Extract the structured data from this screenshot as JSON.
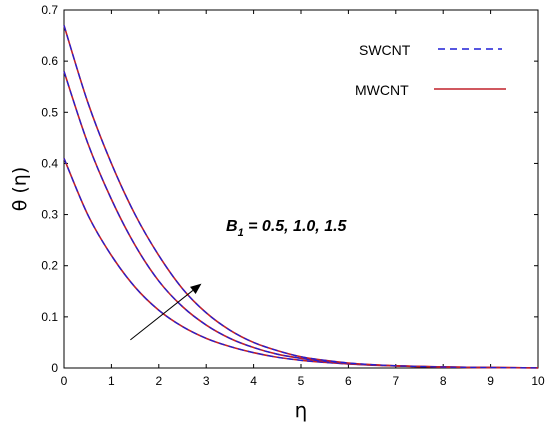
{
  "chart_data": {
    "type": "line",
    "xlabel": "η",
    "ylabel": "θ (η)",
    "xlim": [
      0,
      10
    ],
    "ylim": [
      0,
      0.7
    ],
    "x_ticks": [
      "0",
      "1",
      "2",
      "3",
      "4",
      "5",
      "6",
      "7",
      "8",
      "9",
      "10"
    ],
    "y_ticks": [
      "0",
      "0.1",
      "0.2",
      "0.3",
      "0.4",
      "0.5",
      "0.6",
      "0.7"
    ],
    "grid": false,
    "legend_position": "top-right",
    "legend": [
      {
        "label": "SWCNT",
        "style": "dashed",
        "color": "#1f1fd6"
      },
      {
        "label": "MWCNT",
        "style": "solid",
        "color": "#c0202a"
      }
    ],
    "annotation": {
      "symbol": "B",
      "subscript": "1",
      "values_text": " = 0.5, 1.0, 1.5",
      "arrow_from": [
        1.4,
        0.055
      ],
      "arrow_to": [
        2.9,
        0.165
      ]
    },
    "x": [
      0,
      0.5,
      1,
      1.5,
      2,
      2.5,
      3,
      3.5,
      4,
      4.5,
      5,
      5.5,
      6,
      6.5,
      7,
      7.5,
      8,
      8.5,
      9,
      9.5,
      10
    ],
    "series": [
      {
        "values": [
          0.41,
          0.3,
          0.22,
          0.158,
          0.113,
          0.081,
          0.058,
          0.042,
          0.03,
          0.021,
          0.015,
          0.011,
          0.0078,
          0.0056,
          0.004,
          0.0028,
          0.002,
          0.0014,
          0.001,
          0.0006,
          0.0003
        ]
      },
      {
        "values": [
          0.58,
          0.44,
          0.33,
          0.24,
          0.17,
          0.12,
          0.084,
          0.058,
          0.04,
          0.027,
          0.019,
          0.013,
          0.009,
          0.0062,
          0.0043,
          0.003,
          0.002,
          0.0014,
          0.001,
          0.0006,
          0.0003
        ]
      },
      {
        "values": [
          0.67,
          0.52,
          0.4,
          0.3,
          0.22,
          0.155,
          0.108,
          0.074,
          0.05,
          0.034,
          0.022,
          0.015,
          0.0098,
          0.0065,
          0.0043,
          0.0029,
          0.0019,
          0.0013,
          0.0009,
          0.0005,
          0.0003
        ]
      }
    ]
  }
}
